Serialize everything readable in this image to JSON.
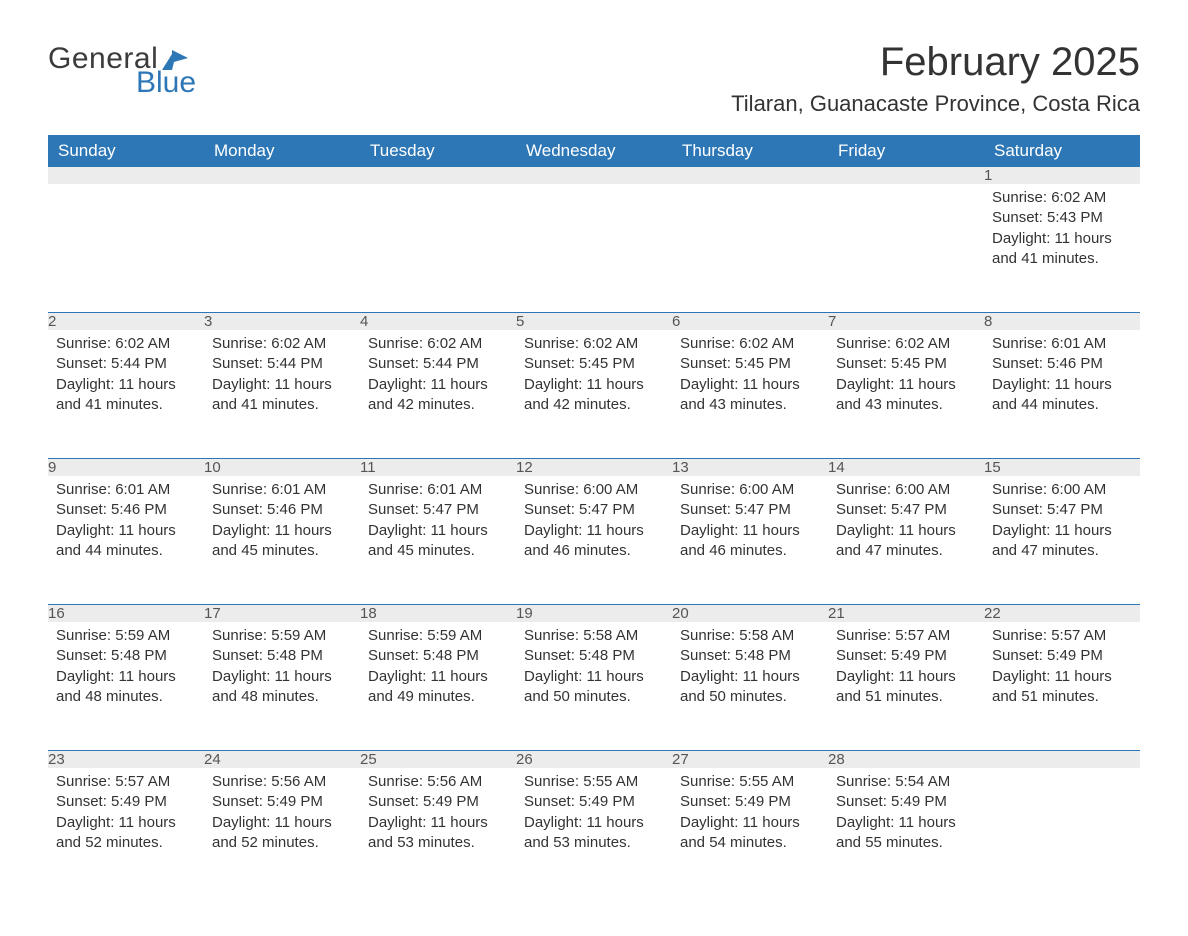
{
  "logo": {
    "text1": "General",
    "text2": "Blue",
    "icon_color": "#2d77b6"
  },
  "title": "February 2025",
  "location": "Tilaran, Guanacaste Province, Costa Rica",
  "colors": {
    "header_bg": "#2d77b6",
    "header_text": "#ffffff",
    "daynum_bg": "#ececec",
    "row_border": "#2d77b6",
    "text": "#333333",
    "background": "#ffffff"
  },
  "typography": {
    "title_fontsize": 40,
    "location_fontsize": 22,
    "weekday_fontsize": 17,
    "daynum_fontsize": 18,
    "body_fontsize": 15,
    "font_family": "Segoe UI"
  },
  "layout": {
    "columns": 7,
    "rows": 5,
    "start_weekday": "Sunday"
  },
  "weekdays": [
    "Sunday",
    "Monday",
    "Tuesday",
    "Wednesday",
    "Thursday",
    "Friday",
    "Saturday"
  ],
  "labels": {
    "sunrise": "Sunrise:",
    "sunset": "Sunset:",
    "daylight": "Daylight:"
  },
  "weeks": [
    [
      null,
      null,
      null,
      null,
      null,
      null,
      {
        "day": "1",
        "sunrise": "6:02 AM",
        "sunset": "5:43 PM",
        "daylight": "11 hours and 41 minutes."
      }
    ],
    [
      {
        "day": "2",
        "sunrise": "6:02 AM",
        "sunset": "5:44 PM",
        "daylight": "11 hours and 41 minutes."
      },
      {
        "day": "3",
        "sunrise": "6:02 AM",
        "sunset": "5:44 PM",
        "daylight": "11 hours and 41 minutes."
      },
      {
        "day": "4",
        "sunrise": "6:02 AM",
        "sunset": "5:44 PM",
        "daylight": "11 hours and 42 minutes."
      },
      {
        "day": "5",
        "sunrise": "6:02 AM",
        "sunset": "5:45 PM",
        "daylight": "11 hours and 42 minutes."
      },
      {
        "day": "6",
        "sunrise": "6:02 AM",
        "sunset": "5:45 PM",
        "daylight": "11 hours and 43 minutes."
      },
      {
        "day": "7",
        "sunrise": "6:02 AM",
        "sunset": "5:45 PM",
        "daylight": "11 hours and 43 minutes."
      },
      {
        "day": "8",
        "sunrise": "6:01 AM",
        "sunset": "5:46 PM",
        "daylight": "11 hours and 44 minutes."
      }
    ],
    [
      {
        "day": "9",
        "sunrise": "6:01 AM",
        "sunset": "5:46 PM",
        "daylight": "11 hours and 44 minutes."
      },
      {
        "day": "10",
        "sunrise": "6:01 AM",
        "sunset": "5:46 PM",
        "daylight": "11 hours and 45 minutes."
      },
      {
        "day": "11",
        "sunrise": "6:01 AM",
        "sunset": "5:47 PM",
        "daylight": "11 hours and 45 minutes."
      },
      {
        "day": "12",
        "sunrise": "6:00 AM",
        "sunset": "5:47 PM",
        "daylight": "11 hours and 46 minutes."
      },
      {
        "day": "13",
        "sunrise": "6:00 AM",
        "sunset": "5:47 PM",
        "daylight": "11 hours and 46 minutes."
      },
      {
        "day": "14",
        "sunrise": "6:00 AM",
        "sunset": "5:47 PM",
        "daylight": "11 hours and 47 minutes."
      },
      {
        "day": "15",
        "sunrise": "6:00 AM",
        "sunset": "5:47 PM",
        "daylight": "11 hours and 47 minutes."
      }
    ],
    [
      {
        "day": "16",
        "sunrise": "5:59 AM",
        "sunset": "5:48 PM",
        "daylight": "11 hours and 48 minutes."
      },
      {
        "day": "17",
        "sunrise": "5:59 AM",
        "sunset": "5:48 PM",
        "daylight": "11 hours and 48 minutes."
      },
      {
        "day": "18",
        "sunrise": "5:59 AM",
        "sunset": "5:48 PM",
        "daylight": "11 hours and 49 minutes."
      },
      {
        "day": "19",
        "sunrise": "5:58 AM",
        "sunset": "5:48 PM",
        "daylight": "11 hours and 50 minutes."
      },
      {
        "day": "20",
        "sunrise": "5:58 AM",
        "sunset": "5:48 PM",
        "daylight": "11 hours and 50 minutes."
      },
      {
        "day": "21",
        "sunrise": "5:57 AM",
        "sunset": "5:49 PM",
        "daylight": "11 hours and 51 minutes."
      },
      {
        "day": "22",
        "sunrise": "5:57 AM",
        "sunset": "5:49 PM",
        "daylight": "11 hours and 51 minutes."
      }
    ],
    [
      {
        "day": "23",
        "sunrise": "5:57 AM",
        "sunset": "5:49 PM",
        "daylight": "11 hours and 52 minutes."
      },
      {
        "day": "24",
        "sunrise": "5:56 AM",
        "sunset": "5:49 PM",
        "daylight": "11 hours and 52 minutes."
      },
      {
        "day": "25",
        "sunrise": "5:56 AM",
        "sunset": "5:49 PM",
        "daylight": "11 hours and 53 minutes."
      },
      {
        "day": "26",
        "sunrise": "5:55 AM",
        "sunset": "5:49 PM",
        "daylight": "11 hours and 53 minutes."
      },
      {
        "day": "27",
        "sunrise": "5:55 AM",
        "sunset": "5:49 PM",
        "daylight": "11 hours and 54 minutes."
      },
      {
        "day": "28",
        "sunrise": "5:54 AM",
        "sunset": "5:49 PM",
        "daylight": "11 hours and 55 minutes."
      },
      null
    ]
  ]
}
